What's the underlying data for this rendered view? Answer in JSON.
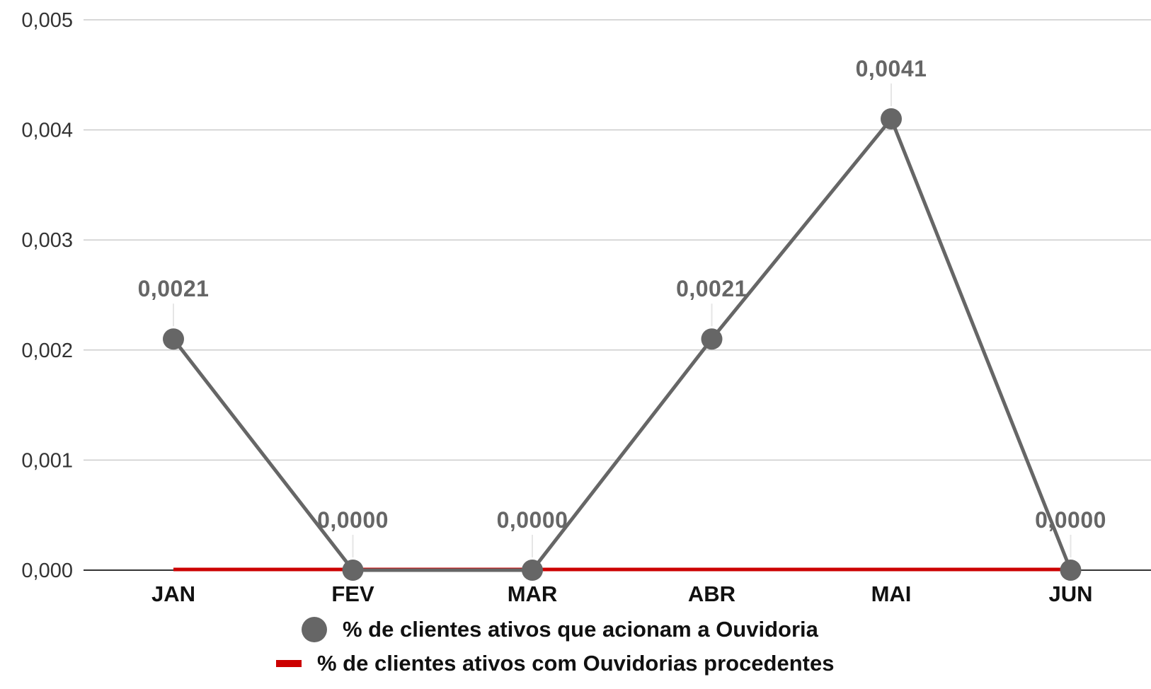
{
  "chart_data": {
    "type": "line",
    "categories": [
      "JAN",
      "FEV",
      "MAR",
      "ABR",
      "MAI",
      "JUN"
    ],
    "ylim": [
      0,
      0.005
    ],
    "yticks": [
      "0,000",
      "0,001",
      "0,002",
      "0,003",
      "0,004",
      "0,005"
    ],
    "ytick_values": [
      0,
      0.001,
      0.002,
      0.003,
      0.004,
      0.005
    ],
    "grid": true,
    "legend_position": "bottom",
    "series": [
      {
        "name": "% de clientes ativos que acionam a Ouvidoria",
        "values": [
          0.0021,
          0,
          0,
          0.0021,
          0.0041,
          0
        ],
        "labels": [
          "0,0021",
          "0,0000",
          "0,0000",
          "0,0021",
          "0,0041",
          "0,0000"
        ],
        "color": "#666666",
        "marker": "circle"
      },
      {
        "name": "% de clientes ativos com Ouvidorias procedentes",
        "values": [
          0,
          0,
          0,
          0,
          0,
          0
        ],
        "color": "#cc0000",
        "marker": "none"
      }
    ]
  }
}
